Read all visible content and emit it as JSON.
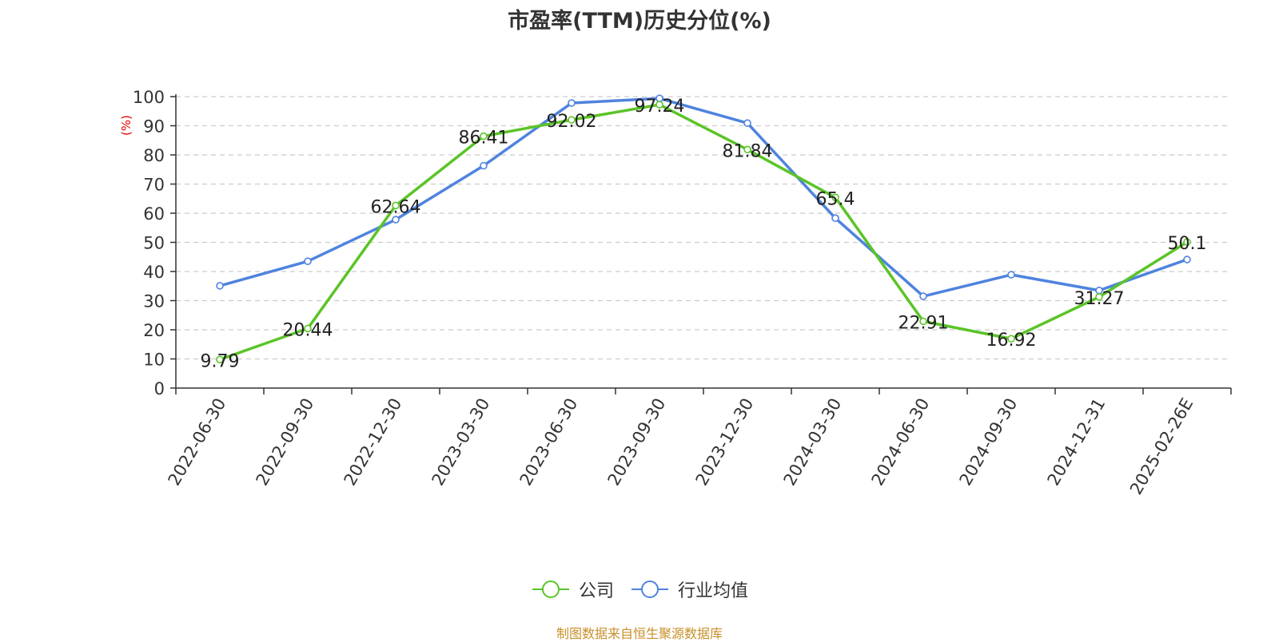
{
  "title": "市盈率(TTM)历史分位(%)",
  "source": "制图数据来自恒生聚源数据库",
  "colors": {
    "company": "#5ac427",
    "industry": "#4f83de",
    "axis_unit": "#e00000",
    "source": "#c8902a"
  },
  "chart_data": {
    "type": "line",
    "title": "市盈率(TTM)历史分位(%)",
    "ylabel": "(%)",
    "ylim": [
      0,
      100
    ],
    "yticks": [
      0,
      10,
      20,
      30,
      40,
      50,
      60,
      70,
      80,
      90,
      100
    ],
    "grid": true,
    "legend_position": "bottom",
    "categories": [
      "2022-06-30",
      "2022-09-30",
      "2022-12-30",
      "2023-03-30",
      "2023-06-30",
      "2023-09-30",
      "2023-12-30",
      "2024-03-30",
      "2024-06-30",
      "2024-09-30",
      "2024-12-31",
      "2025-02-26E"
    ],
    "series": [
      {
        "name": "公司",
        "color": "#5ac427",
        "values": [
          9.79,
          20.44,
          62.64,
          86.41,
          92.02,
          97.24,
          81.84,
          65.4,
          22.91,
          16.92,
          31.27,
          50.1
        ],
        "labels": [
          "9.79",
          "20.44",
          "62.64",
          "86.41",
          "92.02",
          "97.24",
          "81.84",
          "65.4",
          "22.91",
          "16.92",
          "31.27",
          "50.1"
        ]
      },
      {
        "name": "行业均值",
        "color": "#4f83de",
        "values": [
          35.1,
          43.5,
          57.8,
          76.3,
          97.8,
          99.4,
          90.9,
          58.3,
          31.5,
          38.9,
          33.5,
          44.1
        ]
      }
    ]
  }
}
